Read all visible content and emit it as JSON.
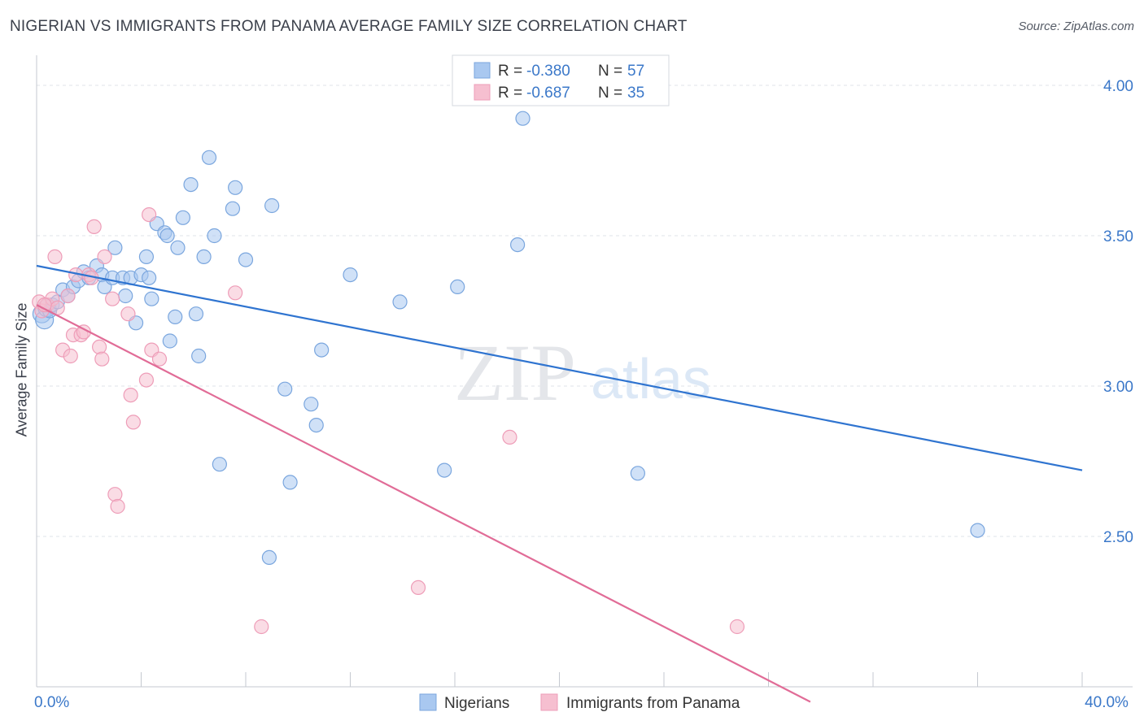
{
  "header": {
    "title": "NIGERIAN VS IMMIGRANTS FROM PANAMA AVERAGE FAMILY SIZE CORRELATION CHART",
    "source": "Source: ZipAtlas.com"
  },
  "watermark": {
    "zip": "ZIP",
    "atlas": "atlas"
  },
  "colors": {
    "blue_fill": "#a9c8f0",
    "blue_stroke": "#7aa6de",
    "blue_line": "#2f74d0",
    "pink_fill": "#f6bfd0",
    "pink_stroke": "#ee9db8",
    "pink_line": "#e16c97",
    "value_text": "#3b78c9",
    "grid": "#dfe3ea"
  },
  "chart_data": {
    "type": "scatter",
    "title": "NIGERIAN VS IMMIGRANTS FROM PANAMA AVERAGE FAMILY SIZE CORRELATION CHART",
    "xlabel": "",
    "ylabel": "Average Family Size",
    "xlim": [
      0,
      40
    ],
    "ylim": [
      2.0,
      4.1
    ],
    "x_tick_labels": [
      {
        "value": 0,
        "label": "0.0%"
      },
      {
        "value": 40,
        "label": "40.0%"
      }
    ],
    "y_ticks": [
      {
        "value": 2.5,
        "label": "2.50"
      },
      {
        "value": 3.0,
        "label": "3.00"
      },
      {
        "value": 3.5,
        "label": "3.50"
      },
      {
        "value": 4.0,
        "label": "4.00"
      }
    ],
    "legend_stats": [
      {
        "r_label": "R = ",
        "r_value": "-0.380",
        "n_label": "N = ",
        "n_value": "57"
      },
      {
        "r_label": "R = ",
        "r_value": "-0.687",
        "n_label": "N = ",
        "n_value": "35"
      }
    ],
    "series": [
      {
        "name": "Nigerians",
        "color": "#a9c8f0",
        "trend": {
          "x": [
            0,
            40
          ],
          "y": [
            3.4,
            2.72
          ]
        },
        "points": [
          [
            0.2,
            3.24
          ],
          [
            0.3,
            3.22
          ],
          [
            0.4,
            3.26
          ],
          [
            0.5,
            3.25
          ],
          [
            0.6,
            3.27
          ],
          [
            0.8,
            3.28
          ],
          [
            1.0,
            3.32
          ],
          [
            1.2,
            3.3
          ],
          [
            1.4,
            3.33
          ],
          [
            1.6,
            3.35
          ],
          [
            1.8,
            3.38
          ],
          [
            2.0,
            3.36
          ],
          [
            2.3,
            3.4
          ],
          [
            2.5,
            3.37
          ],
          [
            2.6,
            3.33
          ],
          [
            2.9,
            3.36
          ],
          [
            3.0,
            3.46
          ],
          [
            3.3,
            3.36
          ],
          [
            3.4,
            3.3
          ],
          [
            3.6,
            3.36
          ],
          [
            3.8,
            3.21
          ],
          [
            4.0,
            3.37
          ],
          [
            4.2,
            3.43
          ],
          [
            4.3,
            3.36
          ],
          [
            4.4,
            3.29
          ],
          [
            4.6,
            3.54
          ],
          [
            4.9,
            3.51
          ],
          [
            5.0,
            3.5
          ],
          [
            5.1,
            3.15
          ],
          [
            5.3,
            3.23
          ],
          [
            5.4,
            3.46
          ],
          [
            5.6,
            3.56
          ],
          [
            5.9,
            3.67
          ],
          [
            6.1,
            3.24
          ],
          [
            6.2,
            3.1
          ],
          [
            6.4,
            3.43
          ],
          [
            6.6,
            3.76
          ],
          [
            6.8,
            3.5
          ],
          [
            7.0,
            2.74
          ],
          [
            7.5,
            3.59
          ],
          [
            7.6,
            3.66
          ],
          [
            8.0,
            3.42
          ],
          [
            8.9,
            2.43
          ],
          [
            9.0,
            3.6
          ],
          [
            9.5,
            2.99
          ],
          [
            9.7,
            2.68
          ],
          [
            10.5,
            2.94
          ],
          [
            10.7,
            2.87
          ],
          [
            10.9,
            3.12
          ],
          [
            12.0,
            3.37
          ],
          [
            13.9,
            3.28
          ],
          [
            15.6,
            2.72
          ],
          [
            16.1,
            3.33
          ],
          [
            18.6,
            3.89
          ],
          [
            18.4,
            3.47
          ],
          [
            23.0,
            2.71
          ],
          [
            36.0,
            2.52
          ]
        ]
      },
      {
        "name": "Immigrants from Panama",
        "color": "#f6bfd0",
        "trend": {
          "x": [
            0,
            29.6
          ],
          "y": [
            3.27,
            1.95
          ]
        },
        "points": [
          [
            0.1,
            3.28
          ],
          [
            0.2,
            3.25
          ],
          [
            0.4,
            3.27
          ],
          [
            0.6,
            3.29
          ],
          [
            0.7,
            3.43
          ],
          [
            0.8,
            3.26
          ],
          [
            1.0,
            3.12
          ],
          [
            1.2,
            3.3
          ],
          [
            1.3,
            3.1
          ],
          [
            1.4,
            3.17
          ],
          [
            1.5,
            3.37
          ],
          [
            1.7,
            3.17
          ],
          [
            1.8,
            3.18
          ],
          [
            2.0,
            3.37
          ],
          [
            2.1,
            3.36
          ],
          [
            2.2,
            3.53
          ],
          [
            2.4,
            3.13
          ],
          [
            2.5,
            3.09
          ],
          [
            2.6,
            3.43
          ],
          [
            2.9,
            3.29
          ],
          [
            3.0,
            2.64
          ],
          [
            3.1,
            2.6
          ],
          [
            3.5,
            3.24
          ],
          [
            3.6,
            2.97
          ],
          [
            3.7,
            2.88
          ],
          [
            4.2,
            3.02
          ],
          [
            4.3,
            3.57
          ],
          [
            4.4,
            3.12
          ],
          [
            4.7,
            3.09
          ],
          [
            7.6,
            3.31
          ],
          [
            8.6,
            2.2
          ],
          [
            14.6,
            2.33
          ],
          [
            18.1,
            2.83
          ],
          [
            26.8,
            2.2
          ],
          [
            0.3,
            3.27
          ]
        ]
      }
    ]
  }
}
